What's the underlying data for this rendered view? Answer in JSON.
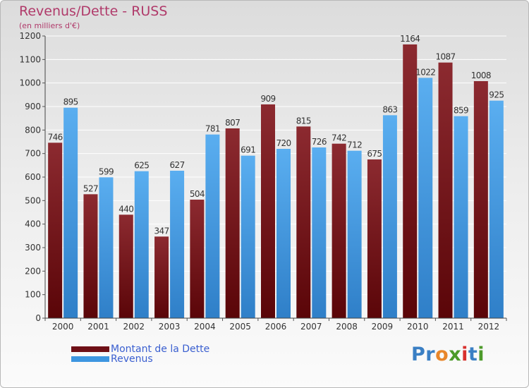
{
  "title": "Revenus/Dette - RUSS",
  "subtitle": "(en milliers d'€)",
  "logo": {
    "text": "Proxiti",
    "letters": [
      {
        "char": "P",
        "color": "#3a7fc4"
      },
      {
        "char": "r",
        "color": "#3a7fc4"
      },
      {
        "char": "o",
        "color": "#e8862a"
      },
      {
        "char": "x",
        "color": "#4c9a2a"
      },
      {
        "char": "i",
        "color": "#d8302e"
      },
      {
        "char": "t",
        "color": "#3a7fc4"
      },
      {
        "char": "i",
        "color": "#4c9a2a"
      }
    ]
  },
  "legend": {
    "items": [
      {
        "label": "Montant de la Dette",
        "color": "#6e0f16"
      },
      {
        "label": "Revenus",
        "color": "#3d96e0"
      }
    ]
  },
  "chart_data": {
    "type": "bar",
    "title": "Revenus/Dette - RUSS",
    "subtitle": "(en milliers d'€)",
    "categories": [
      "2000",
      "2001",
      "2002",
      "2003",
      "2004",
      "2005",
      "2006",
      "2007",
      "2008",
      "2009",
      "2010",
      "2011",
      "2012"
    ],
    "series": [
      {
        "name": "Montant de la Dette",
        "color": "#7a1a20",
        "values": [
          746,
          527,
          440,
          347,
          504,
          807,
          909,
          815,
          742,
          675,
          1164,
          1087,
          1008
        ]
      },
      {
        "name": "Revenus",
        "color": "#3d96e0",
        "values": [
          895,
          599,
          625,
          627,
          781,
          691,
          720,
          726,
          712,
          863,
          1022,
          859,
          925
        ]
      }
    ],
    "yticks": [
      0,
      100,
      200,
      300,
      400,
      500,
      600,
      700,
      800,
      900,
      1000,
      1100,
      1200
    ],
    "ylim": [
      0,
      1200
    ],
    "grid": true,
    "legend_position": "bottom-left"
  }
}
